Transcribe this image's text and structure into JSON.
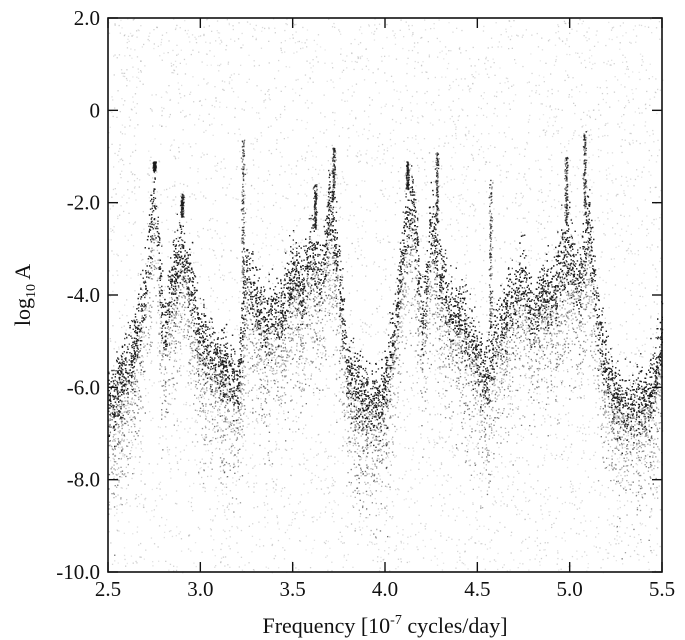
{
  "chart_data": {
    "type": "scatter",
    "xlabel": {
      "pre": "Frequency [10",
      "exp": "-7",
      "post": " cycles/day]"
    },
    "ylabel": {
      "pre": "log",
      "sub": "10",
      "post": " A"
    },
    "xlim": [
      2.5,
      5.5
    ],
    "ylim": [
      -10.0,
      2.0
    ],
    "x_ticks": [
      2.5,
      3.0,
      3.5,
      4.0,
      4.5,
      5.0,
      5.5
    ],
    "x_tick_labels": [
      "2.5",
      "3.0",
      "3.5",
      "4.0",
      "4.5",
      "5.0",
      "5.5"
    ],
    "y_ticks": [
      -10.0,
      -8.0,
      -6.0,
      -4.0,
      -2.0,
      0.0,
      2.0
    ],
    "y_tick_labels": [
      "-10.0",
      "-8.0",
      "-6.0",
      "-4.0",
      "-2.0",
      "0",
      "2.0"
    ],
    "grid": false,
    "point_color": "#1a1a1a",
    "envelope": {
      "x": [
        2.5,
        2.55,
        2.6,
        2.65,
        2.7,
        2.75,
        2.8,
        2.85,
        2.9,
        2.95,
        3.0,
        3.05,
        3.1,
        3.15,
        3.2,
        3.25,
        3.3,
        3.35,
        3.4,
        3.45,
        3.5,
        3.55,
        3.6,
        3.65,
        3.7,
        3.75,
        3.8,
        3.85,
        3.9,
        3.95,
        4.0,
        4.05,
        4.1,
        4.15,
        4.2,
        4.25,
        4.3,
        4.35,
        4.4,
        4.45,
        4.5,
        4.55,
        4.6,
        4.65,
        4.7,
        4.75,
        4.8,
        4.85,
        4.9,
        4.95,
        5.0,
        5.05,
        5.1,
        5.15,
        5.2,
        5.25,
        5.3,
        5.35,
        5.4,
        5.45,
        5.5
      ],
      "log10A": [
        -6.2,
        -5.8,
        -5.3,
        -4.8,
        -3.6,
        -1.6,
        -4.6,
        -3.4,
        -2.8,
        -3.6,
        -4.8,
        -5.0,
        -5.2,
        -5.3,
        -5.8,
        -3.2,
        -4.0,
        -4.4,
        -4.2,
        -4.0,
        -3.2,
        -3.6,
        -2.8,
        -3.4,
        -1.8,
        -3.4,
        -5.4,
        -5.8,
        -6.0,
        -6.2,
        -5.8,
        -4.6,
        -2.6,
        -1.6,
        -4.4,
        -2.2,
        -3.4,
        -4.0,
        -4.2,
        -4.6,
        -5.0,
        -5.6,
        -4.6,
        -4.2,
        -3.8,
        -3.4,
        -4.2,
        -3.6,
        -3.8,
        -3.2,
        -2.8,
        -3.6,
        -2.2,
        -4.2,
        -5.4,
        -6.0,
        -6.2,
        -6.1,
        -6.0,
        -5.8,
        -4.6
      ]
    },
    "spikes": [
      {
        "x": 2.75,
        "top": -1.3
      },
      {
        "x": 2.9,
        "top": -1.8
      },
      {
        "x": 3.23,
        "top": -0.6
      },
      {
        "x": 3.62,
        "top": -1.6
      },
      {
        "x": 3.72,
        "top": -0.8
      },
      {
        "x": 4.12,
        "top": -1.1
      },
      {
        "x": 4.28,
        "top": -0.9
      },
      {
        "x": 4.57,
        "top": -1.5
      },
      {
        "x": 4.98,
        "top": -1.0
      },
      {
        "x": 5.08,
        "top": -0.4
      }
    ]
  }
}
